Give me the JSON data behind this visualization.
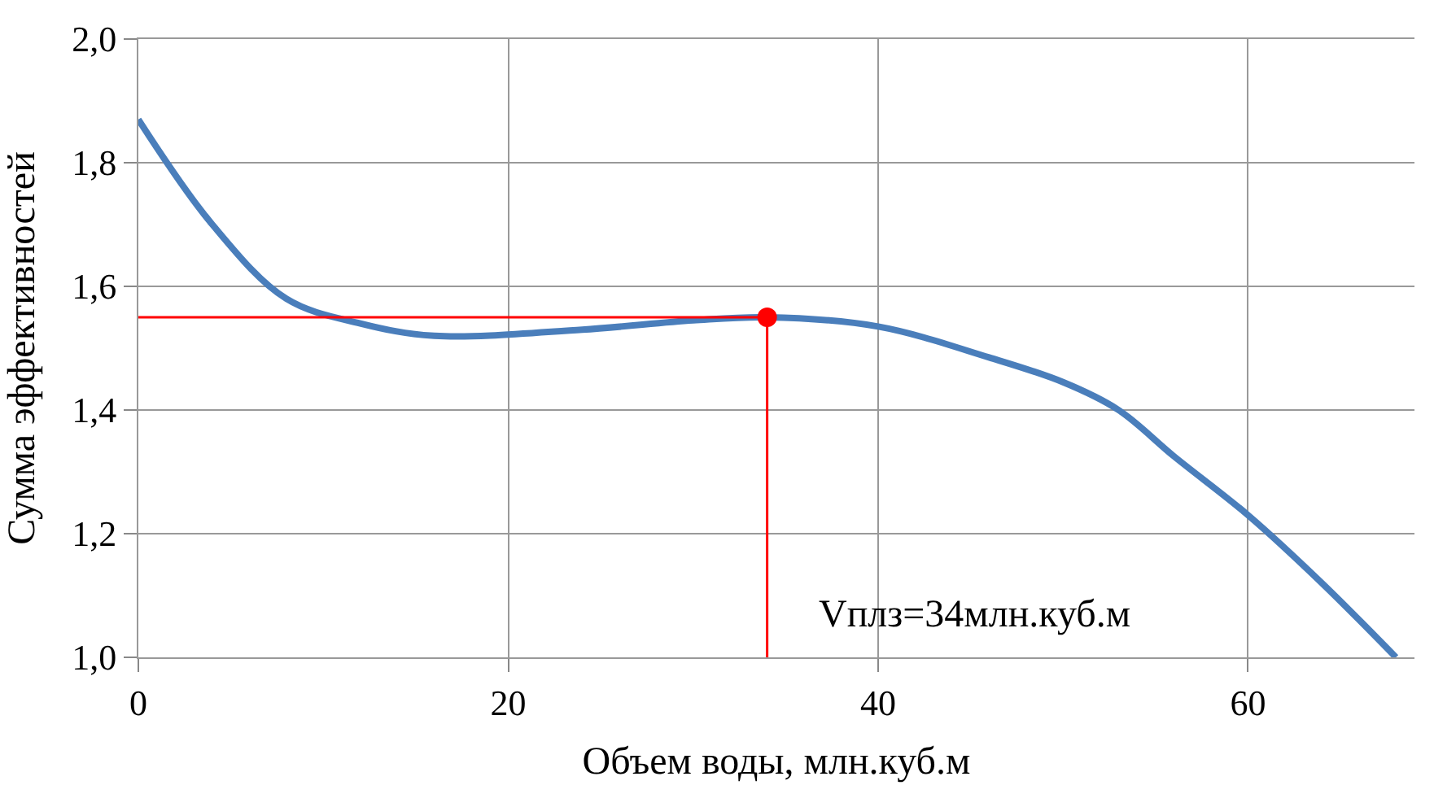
{
  "chart_data": {
    "type": "line",
    "xlabel": "Объем воды, млн.куб.м",
    "ylabel": "Сумма эффективностей",
    "series": [
      {
        "color": "#4a7ebb",
        "x": [
          0,
          4,
          8,
          12,
          16,
          24,
          30,
          34,
          40,
          46,
          50,
          53,
          56,
          60,
          64,
          68
        ],
        "values": [
          1.87,
          1.7,
          1.58,
          1.54,
          1.52,
          1.53,
          1.545,
          1.55,
          1.535,
          1.485,
          1.445,
          1.4,
          1.325,
          1.23,
          1.12,
          1.0
        ]
      },
      {
        "type": "line",
        "color": "#ff0000",
        "x": [
          0,
          34,
          34
        ],
        "values": [
          1.55,
          1.55,
          1.0
        ]
      },
      {
        "type": "scatter",
        "color": "#ff0000",
        "marker": "circle",
        "x": [
          34
        ],
        "values": [
          1.55
        ]
      }
    ],
    "annotations": [
      "Vплз=34млн.куб.м"
    ],
    "xlim": [
      0,
      69
    ],
    "xticks": [
      0,
      20,
      40,
      60
    ],
    "ylim": [
      1.0,
      2.0
    ],
    "yticks": [
      {
        "value": 1.0,
        "label": "1,0"
      },
      {
        "value": 1.2,
        "label": "1,2"
      },
      {
        "value": 1.4,
        "label": "1,4"
      },
      {
        "value": 1.6,
        "label": "1,6"
      },
      {
        "value": 1.8,
        "label": "1,8"
      },
      {
        "value": 2.0,
        "label": "2,0"
      }
    ],
    "grid": true
  }
}
